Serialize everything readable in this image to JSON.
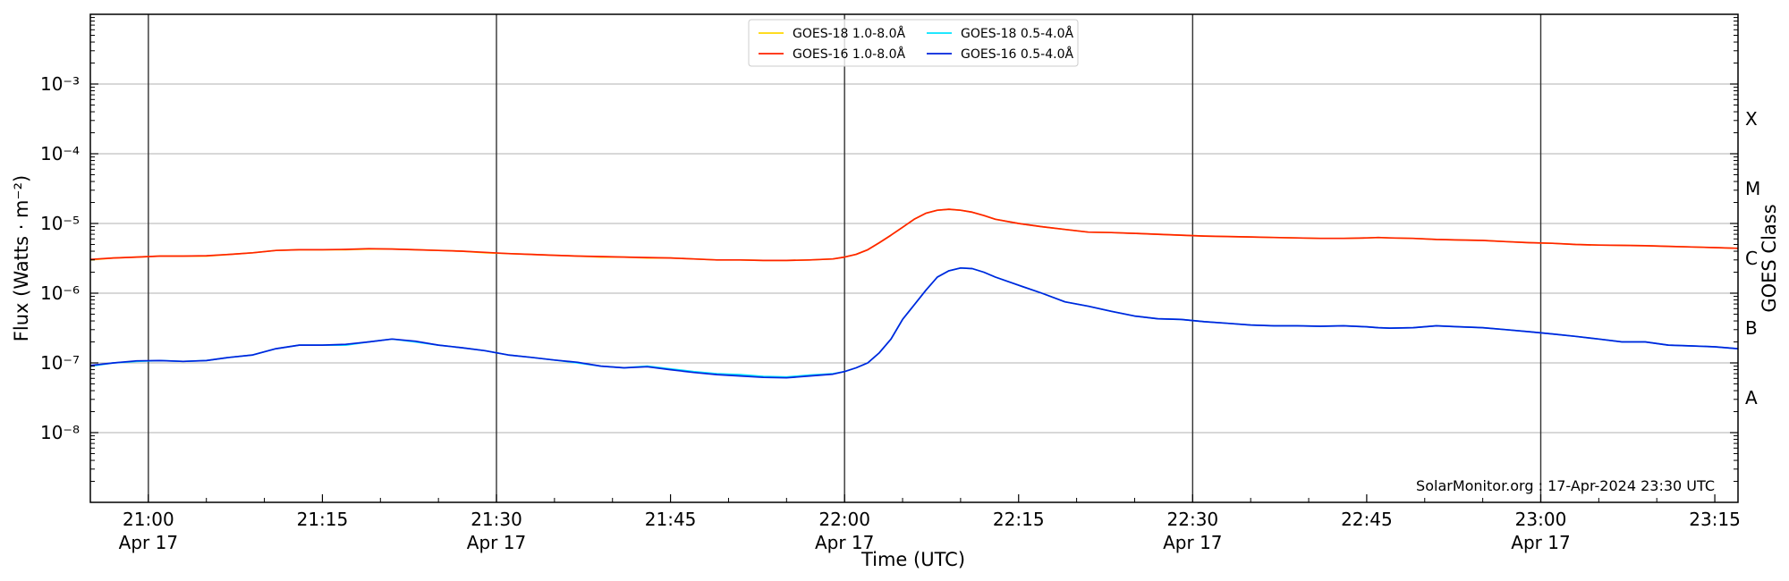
{
  "chart_data": {
    "type": "line",
    "xlabel": "Time (UTC)",
    "ylabel": "Flux (Watts · m⁻²)",
    "right_ylabel": "GOES Class",
    "credit": "SolarMonitor.org : 17-Apr-2024 23:30 UTC",
    "y_scale": "log",
    "ylim": [
      1e-09,
      0.01
    ],
    "xlim": [
      "20:55",
      "23:17"
    ],
    "grid": "horizontal at decades; vertical lines at half-hours",
    "legend_position": "top-center",
    "y_ticks": [
      {
        "value": 0.001,
        "label": "10⁻³"
      },
      {
        "value": 0.0001,
        "label": "10⁻⁴"
      },
      {
        "value": 1e-05,
        "label": "10⁻⁵"
      },
      {
        "value": 1e-06,
        "label": "10⁻⁶"
      },
      {
        "value": 1e-07,
        "label": "10⁻⁷"
      },
      {
        "value": 1e-08,
        "label": "10⁻⁸"
      }
    ],
    "x_ticks": [
      {
        "time": "21:00",
        "label": "21:00",
        "date": "Apr 17"
      },
      {
        "time": "21:15",
        "label": "21:15",
        "date": ""
      },
      {
        "time": "21:30",
        "label": "21:30",
        "date": "Apr 17"
      },
      {
        "time": "21:45",
        "label": "21:45",
        "date": ""
      },
      {
        "time": "22:00",
        "label": "22:00",
        "date": "Apr 17"
      },
      {
        "time": "22:15",
        "label": "22:15",
        "date": ""
      },
      {
        "time": "22:30",
        "label": "22:30",
        "date": "Apr 17"
      },
      {
        "time": "22:45",
        "label": "22:45",
        "date": ""
      },
      {
        "time": "23:00",
        "label": "23:00",
        "date": "Apr 17"
      },
      {
        "time": "23:15",
        "label": "23:15",
        "date": ""
      }
    ],
    "vertical_lines": [
      "21:00",
      "21:30",
      "22:00",
      "22:30",
      "23:00"
    ],
    "goes_classes": [
      {
        "label": "X",
        "value": 0.000316
      },
      {
        "label": "M",
        "value": 3.16e-05
      },
      {
        "label": "C",
        "value": 3.16e-06
      },
      {
        "label": "B",
        "value": 3.16e-07
      },
      {
        "label": "A",
        "value": 3.16e-08
      }
    ],
    "x": [
      "20:55",
      "20:57",
      "20:59",
      "21:01",
      "21:03",
      "21:05",
      "21:07",
      "21:09",
      "21:11",
      "21:13",
      "21:15",
      "21:17",
      "21:19",
      "21:21",
      "21:23",
      "21:25",
      "21:27",
      "21:29",
      "21:31",
      "21:33",
      "21:35",
      "21:37",
      "21:39",
      "21:41",
      "21:43",
      "21:45",
      "21:47",
      "21:49",
      "21:51",
      "21:53",
      "21:55",
      "21:57",
      "21:59",
      "22:00",
      "22:01",
      "22:02",
      "22:03",
      "22:04",
      "22:05",
      "22:06",
      "22:07",
      "22:08",
      "22:09",
      "22:10",
      "22:11",
      "22:12",
      "22:13",
      "22:15",
      "22:17",
      "22:19",
      "22:21",
      "22:23",
      "22:25",
      "22:27",
      "22:29",
      "22:31",
      "22:33",
      "22:35",
      "22:37",
      "22:39",
      "22:41",
      "22:43",
      "22:45",
      "22:46",
      "22:47",
      "22:49",
      "22:51",
      "22:53",
      "22:55",
      "22:57",
      "22:59",
      "23:01",
      "23:03",
      "23:05",
      "23:07",
      "23:09",
      "23:11",
      "23:13",
      "23:15",
      "23:17"
    ],
    "series": [
      {
        "name": "GOES-18 1.0-8.0Å",
        "color": "#ffd700",
        "values": [
          3e-06,
          3.2e-06,
          3.3e-06,
          3.4e-06,
          3.4e-06,
          3.4e-06,
          3.6e-06,
          3.8e-06,
          4.1e-06,
          4.2e-06,
          4.2e-06,
          4.2e-06,
          4.3e-06,
          4.3e-06,
          4.2e-06,
          4.1e-06,
          4e-06,
          3.8e-06,
          3.7e-06,
          3.6e-06,
          3.5e-06,
          3.4e-06,
          3.3e-06,
          3.3e-06,
          3.2e-06,
          3.2e-06,
          3.1e-06,
          3e-06,
          3e-06,
          2.95e-06,
          2.95e-06,
          3e-06,
          3.1e-06,
          3.3e-06,
          3.6e-06,
          4.2e-06,
          5.3e-06,
          6.8e-06,
          8.8e-06,
          1.15e-05,
          1.4e-05,
          1.55e-05,
          1.6e-05,
          1.55e-05,
          1.45e-05,
          1.3e-05,
          1.15e-05,
          1e-05,
          9e-06,
          8.2e-06,
          7.5e-06,
          7.4e-06,
          7.2e-06,
          7e-06,
          6.8e-06,
          6.6e-06,
          6.5e-06,
          6.4e-06,
          6.3e-06,
          6.2e-06,
          6.1e-06,
          6.1e-06,
          6.2e-06,
          6.3e-06,
          6.2e-06,
          6.1e-06,
          5.9e-06,
          5.8e-06,
          5.7e-06,
          5.5e-06,
          5.3e-06,
          5.2e-06,
          5e-06,
          4.9e-06,
          4.85e-06,
          4.8e-06,
          4.7e-06,
          4.6e-06,
          4.5e-06,
          4.4e-06
        ]
      },
      {
        "name": "GOES-18 0.5-4.0Å",
        "color": "#00e5ff",
        "values": [
          9e-08,
          1e-07,
          1.05e-07,
          1.08e-07,
          1.05e-07,
          1.08e-07,
          1.2e-07,
          1.3e-07,
          1.6e-07,
          1.8e-07,
          1.8e-07,
          1.8e-07,
          2e-07,
          2.2e-07,
          2e-07,
          1.8e-07,
          1.65e-07,
          1.5e-07,
          1.3e-07,
          1.2e-07,
          1.1e-07,
          1e-07,
          9e-08,
          8.5e-08,
          9e-08,
          8.2e-08,
          7.5e-08,
          7e-08,
          6.8e-08,
          6.4e-08,
          6.3e-08,
          6.7e-08,
          7e-08,
          7.5e-08,
          8.5e-08,
          1e-07,
          1.4e-07,
          2.2e-07,
          4.2e-07,
          6.8e-07,
          1.1e-06,
          1.7e-06,
          2.1e-06,
          2.3e-06,
          2.25e-06,
          2e-06,
          1.7e-06,
          1.3e-06,
          1e-06,
          7.5e-07,
          6.5e-07,
          5.5e-07,
          4.7e-07,
          4.3e-07,
          4.2e-07,
          3.9e-07,
          3.7e-07,
          3.5e-07,
          3.4e-07,
          3.4e-07,
          3.35e-07,
          3.4e-07,
          3.3e-07,
          3.2e-07,
          3.15e-07,
          3.2e-07,
          3.4e-07,
          3.3e-07,
          3.2e-07,
          3e-07,
          2.8e-07,
          2.6e-07,
          2.4e-07,
          2.2e-07,
          2e-07,
          2e-07,
          1.8e-07,
          1.75e-07,
          1.7e-07,
          1.6e-07
        ]
      },
      {
        "name": "GOES-16 1.0-8.0Å",
        "color": "#ff2200",
        "values": [
          3.05e-06,
          3.2e-06,
          3.3e-06,
          3.4e-06,
          3.4e-06,
          3.45e-06,
          3.6e-06,
          3.8e-06,
          4.1e-06,
          4.2e-06,
          4.2e-06,
          4.25e-06,
          4.35e-06,
          4.3e-06,
          4.2e-06,
          4.1e-06,
          4e-06,
          3.85e-06,
          3.7e-06,
          3.6e-06,
          3.5e-06,
          3.4e-06,
          3.35e-06,
          3.3e-06,
          3.25e-06,
          3.2e-06,
          3.1e-06,
          3e-06,
          3e-06,
          2.95e-06,
          2.95e-06,
          3e-06,
          3.1e-06,
          3.3e-06,
          3.6e-06,
          4.2e-06,
          5.3e-06,
          6.8e-06,
          8.8e-06,
          1.15e-05,
          1.4e-05,
          1.55e-05,
          1.6e-05,
          1.55e-05,
          1.45e-05,
          1.3e-05,
          1.15e-05,
          1e-05,
          9e-06,
          8.2e-06,
          7.5e-06,
          7.4e-06,
          7.2e-06,
          7e-06,
          6.8e-06,
          6.6e-06,
          6.5e-06,
          6.4e-06,
          6.3e-06,
          6.2e-06,
          6.1e-06,
          6.1e-06,
          6.2e-06,
          6.3e-06,
          6.2e-06,
          6.1e-06,
          5.9e-06,
          5.8e-06,
          5.7e-06,
          5.5e-06,
          5.3e-06,
          5.2e-06,
          5e-06,
          4.9e-06,
          4.85e-06,
          4.8e-06,
          4.7e-06,
          4.6e-06,
          4.5e-06,
          4.4e-06
        ]
      },
      {
        "name": "GOES-16 0.5-4.0Å",
        "color": "#0022dd",
        "values": [
          9.2e-08,
          1e-07,
          1.07e-07,
          1.08e-07,
          1.05e-07,
          1.08e-07,
          1.2e-07,
          1.3e-07,
          1.6e-07,
          1.8e-07,
          1.8e-07,
          1.85e-07,
          2e-07,
          2.2e-07,
          2.05e-07,
          1.8e-07,
          1.65e-07,
          1.5e-07,
          1.3e-07,
          1.2e-07,
          1.1e-07,
          1.02e-07,
          9e-08,
          8.5e-08,
          8.8e-08,
          8e-08,
          7.3e-08,
          6.8e-08,
          6.5e-08,
          6.2e-08,
          6.1e-08,
          6.5e-08,
          6.9e-08,
          7.5e-08,
          8.5e-08,
          1e-07,
          1.4e-07,
          2.2e-07,
          4.2e-07,
          6.8e-07,
          1.1e-06,
          1.7e-06,
          2.1e-06,
          2.3e-06,
          2.25e-06,
          2e-06,
          1.7e-06,
          1.3e-06,
          1e-06,
          7.5e-07,
          6.5e-07,
          5.5e-07,
          4.7e-07,
          4.3e-07,
          4.2e-07,
          3.9e-07,
          3.7e-07,
          3.5e-07,
          3.4e-07,
          3.4e-07,
          3.35e-07,
          3.4e-07,
          3.3e-07,
          3.2e-07,
          3.15e-07,
          3.2e-07,
          3.4e-07,
          3.3e-07,
          3.2e-07,
          3e-07,
          2.8e-07,
          2.6e-07,
          2.4e-07,
          2.2e-07,
          2e-07,
          2e-07,
          1.8e-07,
          1.75e-07,
          1.7e-07,
          1.6e-07
        ]
      }
    ]
  }
}
